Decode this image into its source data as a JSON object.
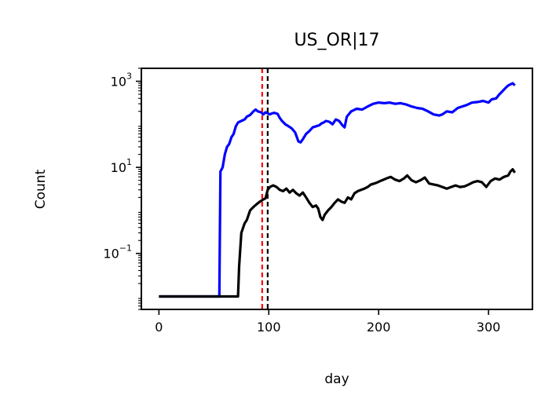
{
  "chart_data": {
    "type": "line",
    "title": "US_OR|17",
    "xlabel": "day",
    "ylabel": "Count",
    "xlim": [
      -16,
      340
    ],
    "yscale": "log",
    "ylim": [
      0.005,
      2000
    ],
    "xticks": [
      0,
      100,
      200,
      300
    ],
    "yticks": [
      {
        "value": 0.1,
        "base": "10",
        "exp": "−1"
      },
      {
        "value": 10,
        "base": "10",
        "exp": "1"
      },
      {
        "value": 1000,
        "base": "10",
        "exp": "3"
      }
    ],
    "grid": false,
    "legend": "none",
    "colors": {
      "series_blue": "#0000ff",
      "series_black": "#000000",
      "vline_red": "#ff0000",
      "vline_black": "#000000"
    },
    "vlines": [
      {
        "x": 94,
        "color": "#ff0000",
        "style": "dashed"
      },
      {
        "x": 99,
        "color": "#000000",
        "style": "dashed"
      }
    ],
    "series": [
      {
        "color": "#0000ff",
        "points": [
          [
            0,
            0.01
          ],
          [
            55,
            0.01
          ],
          [
            56,
            8
          ],
          [
            58,
            10
          ],
          [
            60,
            20
          ],
          [
            62,
            30
          ],
          [
            64,
            35
          ],
          [
            66,
            50
          ],
          [
            68,
            60
          ],
          [
            70,
            90
          ],
          [
            72,
            110
          ],
          [
            75,
            120
          ],
          [
            78,
            130
          ],
          [
            80,
            150
          ],
          [
            83,
            165
          ],
          [
            86,
            200
          ],
          [
            88,
            220
          ],
          [
            90,
            200
          ],
          [
            93,
            190
          ],
          [
            95,
            170
          ],
          [
            97,
            190
          ],
          [
            99,
            180
          ],
          [
            101,
            170
          ],
          [
            103,
            180
          ],
          [
            105,
            185
          ],
          [
            108,
            175
          ],
          [
            110,
            140
          ],
          [
            112,
            120
          ],
          [
            115,
            100
          ],
          [
            118,
            90
          ],
          [
            121,
            80
          ],
          [
            124,
            65
          ],
          [
            127,
            40
          ],
          [
            129,
            38
          ],
          [
            131,
            45
          ],
          [
            134,
            60
          ],
          [
            137,
            70
          ],
          [
            140,
            85
          ],
          [
            143,
            90
          ],
          [
            146,
            95
          ],
          [
            148,
            105
          ],
          [
            150,
            110
          ],
          [
            152,
            120
          ],
          [
            155,
            115
          ],
          [
            158,
            100
          ],
          [
            161,
            130
          ],
          [
            164,
            120
          ],
          [
            167,
            95
          ],
          [
            169,
            85
          ],
          [
            171,
            150
          ],
          [
            175,
            200
          ],
          [
            180,
            230
          ],
          [
            185,
            220
          ],
          [
            190,
            260
          ],
          [
            195,
            300
          ],
          [
            200,
            320
          ],
          [
            205,
            310
          ],
          [
            210,
            320
          ],
          [
            215,
            300
          ],
          [
            220,
            310
          ],
          [
            225,
            290
          ],
          [
            230,
            260
          ],
          [
            235,
            240
          ],
          [
            240,
            230
          ],
          [
            245,
            200
          ],
          [
            250,
            170
          ],
          [
            255,
            160
          ],
          [
            258,
            170
          ],
          [
            262,
            200
          ],
          [
            267,
            190
          ],
          [
            272,
            240
          ],
          [
            276,
            260
          ],
          [
            280,
            280
          ],
          [
            285,
            320
          ],
          [
            290,
            330
          ],
          [
            295,
            350
          ],
          [
            300,
            320
          ],
          [
            303,
            380
          ],
          [
            307,
            400
          ],
          [
            310,
            500
          ],
          [
            313,
            600
          ],
          [
            316,
            720
          ],
          [
            318,
            800
          ],
          [
            320,
            850
          ],
          [
            322,
            900
          ],
          [
            324,
            800
          ]
        ]
      },
      {
        "color": "#000000",
        "points": [
          [
            0,
            0.01
          ],
          [
            72,
            0.01
          ],
          [
            73,
            0.05
          ],
          [
            75,
            0.3
          ],
          [
            78,
            0.5
          ],
          [
            80,
            0.6
          ],
          [
            83,
            1.0
          ],
          [
            86,
            1.2
          ],
          [
            89,
            1.4
          ],
          [
            92,
            1.6
          ],
          [
            95,
            1.8
          ],
          [
            97,
            1.9
          ],
          [
            99,
            3.0
          ],
          [
            101,
            3.5
          ],
          [
            104,
            3.8
          ],
          [
            107,
            3.5
          ],
          [
            110,
            3.0
          ],
          [
            113,
            2.8
          ],
          [
            116,
            3.2
          ],
          [
            119,
            2.6
          ],
          [
            122,
            3.0
          ],
          [
            125,
            2.5
          ],
          [
            128,
            2.2
          ],
          [
            131,
            2.6
          ],
          [
            134,
            2.0
          ],
          [
            137,
            1.5
          ],
          [
            140,
            1.2
          ],
          [
            143,
            1.3
          ],
          [
            145,
            1.1
          ],
          [
            147,
            0.7
          ],
          [
            149,
            0.6
          ],
          [
            151,
            0.8
          ],
          [
            154,
            1.0
          ],
          [
            157,
            1.2
          ],
          [
            160,
            1.5
          ],
          [
            163,
            1.8
          ],
          [
            166,
            1.6
          ],
          [
            169,
            1.5
          ],
          [
            172,
            2.0
          ],
          [
            175,
            1.8
          ],
          [
            178,
            2.5
          ],
          [
            181,
            2.8
          ],
          [
            184,
            3.0
          ],
          [
            187,
            3.2
          ],
          [
            190,
            3.5
          ],
          [
            193,
            4.0
          ],
          [
            196,
            4.2
          ],
          [
            199,
            4.5
          ],
          [
            203,
            5.0
          ],
          [
            207,
            5.5
          ],
          [
            211,
            6.0
          ],
          [
            215,
            5.2
          ],
          [
            219,
            4.8
          ],
          [
            223,
            5.5
          ],
          [
            226,
            6.5
          ],
          [
            230,
            5.0
          ],
          [
            234,
            4.5
          ],
          [
            238,
            5.0
          ],
          [
            242,
            5.8
          ],
          [
            246,
            4.2
          ],
          [
            250,
            4.0
          ],
          [
            254,
            3.8
          ],
          [
            258,
            3.5
          ],
          [
            262,
            3.2
          ],
          [
            266,
            3.5
          ],
          [
            270,
            3.8
          ],
          [
            274,
            3.5
          ],
          [
            278,
            3.6
          ],
          [
            282,
            4.0
          ],
          [
            286,
            4.5
          ],
          [
            290,
            4.8
          ],
          [
            294,
            4.5
          ],
          [
            298,
            3.5
          ],
          [
            302,
            4.8
          ],
          [
            306,
            5.5
          ],
          [
            310,
            5.2
          ],
          [
            314,
            6.0
          ],
          [
            318,
            6.5
          ],
          [
            320,
            8.0
          ],
          [
            322,
            9.0
          ],
          [
            324,
            7.5
          ]
        ]
      }
    ]
  }
}
